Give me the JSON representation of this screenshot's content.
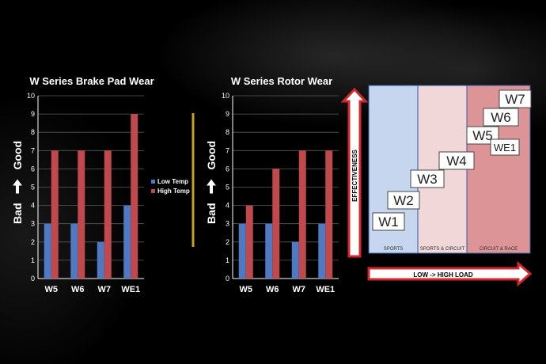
{
  "colors": {
    "low_temp": "#4f79c2",
    "high_temp": "#c0494d",
    "divider": "#c9a21f",
    "sports_zone": "#c5d6ee",
    "circuit_zone": "#f1d7d7",
    "race_zone": "#dc9497",
    "arrow_red": "#d4262b"
  },
  "chart_data": [
    {
      "type": "bar",
      "title": "W Series Brake Pad Wear",
      "ylabel": "Bad → Good",
      "ylabel_left": "Bad",
      "ylabel_right": "Good",
      "ylim": [
        0,
        10
      ],
      "yticks": [
        0,
        1,
        2,
        3,
        4,
        5,
        6,
        7,
        8,
        9,
        10
      ],
      "categories": [
        "W5",
        "W6",
        "W7",
        "WE1"
      ],
      "legend_position": "right",
      "series": [
        {
          "name": "Low Temp",
          "values": [
            3,
            3,
            2,
            4
          ]
        },
        {
          "name": "High Temp",
          "values": [
            7,
            7,
            7,
            9
          ]
        }
      ]
    },
    {
      "type": "bar",
      "title": "W Series Rotor Wear",
      "ylabel": "Bad → Good",
      "ylabel_left": "Bad",
      "ylabel_right": "Good",
      "ylim": [
        0,
        10
      ],
      "yticks": [
        0,
        1,
        2,
        3,
        4,
        5,
        6,
        7,
        8,
        9,
        10
      ],
      "categories": [
        "W5",
        "W6",
        "W7",
        "WE1"
      ],
      "series": [
        {
          "name": "Low Temp",
          "values": [
            3,
            3,
            2,
            3
          ]
        },
        {
          "name": "High Temp",
          "values": [
            4,
            6,
            7,
            7
          ]
        }
      ]
    }
  ],
  "positioning": {
    "y_axis_label": "EFFECTIVENESS",
    "x_axis_label": "LOW -> HIGH LOAD",
    "zones": [
      "SPORTS",
      "SPORTS & CIRCUIT",
      "CIRCUIT & RACE"
    ],
    "products": [
      "W1",
      "W2",
      "W3",
      "W4",
      "W5",
      "WE1",
      "W6",
      "W7"
    ]
  }
}
